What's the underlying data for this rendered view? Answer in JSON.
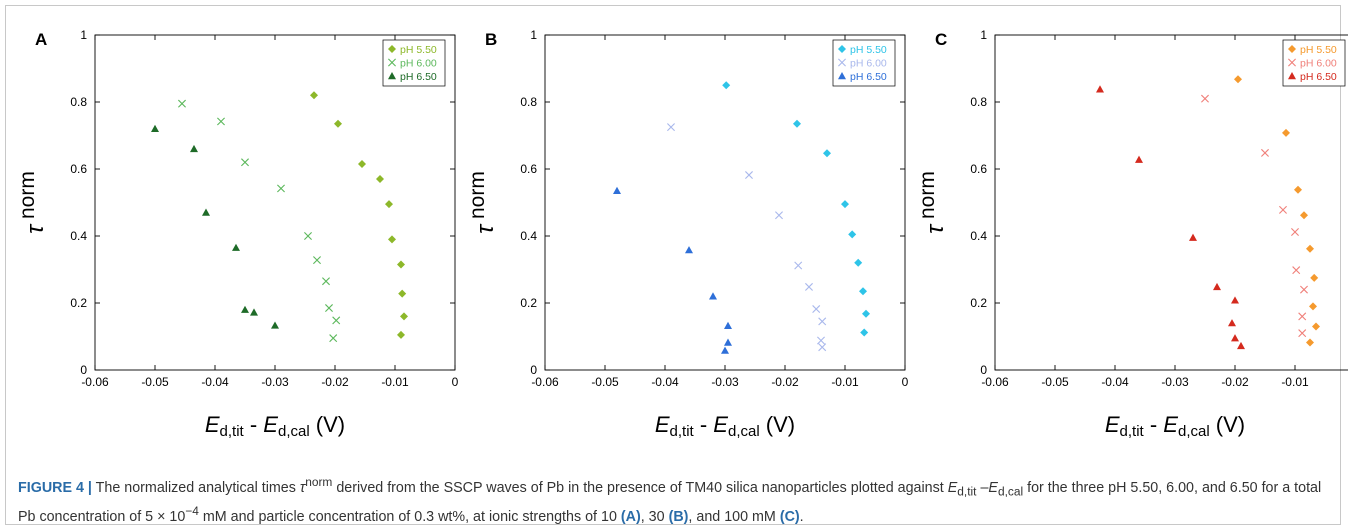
{
  "figure": {
    "caption": {
      "label": "FIGURE 4 |",
      "t1": " The normalized analytical times ",
      "tau": "τ",
      "norm": "norm",
      "t2": " derived from the SSCP waves of Pb in the presence of TM40 silica nanoparticles plotted against ",
      "e1": "E",
      "s1": "d,tit",
      "t3": " –",
      "e2": "E",
      "s2": "d,cal",
      "t4": " for the three pH 5.50, 6.00, and 6.50 for a total Pb concentration of 5 × 10",
      "exp": "−4",
      "t5": " mM and particle concentration of 0.3 wt%, at ionic strengths of 10 ",
      "pa": "(A)",
      "t6": ", 30 ",
      "pb": "(B)",
      "t7": ", and 100 mM ",
      "pc": "(C)",
      "t8": "."
    }
  },
  "chart_data": [
    {
      "type": "scatter",
      "panel_label": "A",
      "xlim": [
        -0.06,
        0
      ],
      "ylim": [
        0,
        1
      ],
      "xticks": [
        "-0.06",
        "-0.05",
        "-0.04",
        "-0.03",
        "-0.02",
        "-0.01",
        "0"
      ],
      "yticks": [
        "0",
        "0.2",
        "0.4",
        "0.6",
        "0.8",
        "1"
      ],
      "xlabel": {
        "a": "E",
        "a_sub": "d,tit",
        "mid": " - ",
        "b": "E",
        "b_sub": "d,cal",
        "unit": " (V)"
      },
      "ylabel": {
        "sym": "τ",
        "sup": "norm"
      },
      "legend_position": "top-right",
      "series": [
        {
          "name": "pH 5.50",
          "marker": "diamond",
          "color": "#8db82a",
          "x": [
            -0.0235,
            -0.0195,
            -0.0155,
            -0.0125,
            -0.011,
            -0.0105,
            -0.009,
            -0.0088,
            -0.0085,
            -0.009
          ],
          "y": [
            0.82,
            0.735,
            0.615,
            0.57,
            0.495,
            0.39,
            0.315,
            0.228,
            0.16,
            0.105
          ]
        },
        {
          "name": "pH 6.00",
          "marker": "cross",
          "color": "#5cb85c",
          "x": [
            -0.0455,
            -0.039,
            -0.035,
            -0.029,
            -0.0245,
            -0.023,
            -0.0215,
            -0.021,
            -0.0198,
            -0.0203
          ],
          "y": [
            0.795,
            0.742,
            0.62,
            0.542,
            0.4,
            0.328,
            0.265,
            0.185,
            0.148,
            0.095
          ]
        },
        {
          "name": "pH 6.50",
          "marker": "triangle",
          "color": "#1e6b28",
          "x": [
            -0.05,
            -0.0435,
            -0.0415,
            -0.0365,
            -0.035,
            -0.0335,
            -0.03
          ],
          "y": [
            0.72,
            0.66,
            0.47,
            0.365,
            0.18,
            0.172,
            0.133
          ]
        }
      ]
    },
    {
      "type": "scatter",
      "panel_label": "B",
      "xlim": [
        -0.06,
        0
      ],
      "ylim": [
        0,
        1
      ],
      "xticks": [
        "-0.06",
        "-0.05",
        "-0.04",
        "-0.03",
        "-0.02",
        "-0.01",
        "0"
      ],
      "yticks": [
        "0",
        "0.2",
        "0.4",
        "0.6",
        "0.8",
        "1"
      ],
      "xlabel": {
        "a": "E",
        "a_sub": "d,tit",
        "mid": " - ",
        "b": "E",
        "b_sub": "d,cal",
        "unit": " (V)"
      },
      "ylabel": {
        "sym": "τ",
        "sup": "norm"
      },
      "legend_position": "top-right",
      "series": [
        {
          "name": "pH 5.50",
          "marker": "diamond",
          "color": "#2ec4e8",
          "x": [
            -0.0298,
            -0.018,
            -0.013,
            -0.01,
            -0.0088,
            -0.0078,
            -0.007,
            -0.0065,
            -0.0068
          ],
          "y": [
            0.85,
            0.735,
            0.647,
            0.495,
            0.405,
            0.32,
            0.235,
            0.168,
            0.112
          ]
        },
        {
          "name": "pH 6.00",
          "marker": "cross",
          "color": "#a9b8ec",
          "x": [
            -0.039,
            -0.026,
            -0.021,
            -0.0178,
            -0.016,
            -0.0148,
            -0.0138,
            -0.014,
            -0.0138
          ],
          "y": [
            0.725,
            0.582,
            0.462,
            0.312,
            0.248,
            0.182,
            0.145,
            0.088,
            0.068
          ]
        },
        {
          "name": "pH 6.50",
          "marker": "triangle",
          "color": "#2e6fd8",
          "x": [
            -0.048,
            -0.036,
            -0.032,
            -0.0295,
            -0.0295,
            -0.03
          ],
          "y": [
            0.535,
            0.358,
            0.22,
            0.132,
            0.082,
            0.058
          ]
        }
      ]
    },
    {
      "type": "scatter",
      "panel_label": "C",
      "xlim": [
        -0.06,
        0
      ],
      "ylim": [
        0,
        1
      ],
      "xticks": [
        "-0.06",
        "-0.05",
        "-0.04",
        "-0.03",
        "-0.02",
        "-0.01",
        "0"
      ],
      "yticks": [
        "0",
        "0.2",
        "0.4",
        "0.6",
        "0.8",
        "1"
      ],
      "xlabel": {
        "a": "E",
        "a_sub": "d,tit",
        "mid": " - ",
        "b": "E",
        "b_sub": "d,cal",
        "unit": " (V)"
      },
      "ylabel": {
        "sym": "τ",
        "sup": "norm"
      },
      "legend_position": "top-right",
      "series": [
        {
          "name": "pH 5.50",
          "marker": "diamond",
          "color": "#f59a2e",
          "x": [
            -0.0195,
            -0.0115,
            -0.0095,
            -0.0085,
            -0.0075,
            -0.0068,
            -0.007,
            -0.0065,
            -0.0075
          ],
          "y": [
            0.868,
            0.708,
            0.538,
            0.462,
            0.362,
            0.275,
            0.19,
            0.13,
            0.082
          ]
        },
        {
          "name": "pH 6.00",
          "marker": "cross",
          "color": "#f0807a",
          "x": [
            -0.025,
            -0.015,
            -0.012,
            -0.01,
            -0.0098,
            -0.0085,
            -0.0088,
            -0.0088
          ],
          "y": [
            0.81,
            0.648,
            0.478,
            0.412,
            0.298,
            0.24,
            0.16,
            0.11
          ]
        },
        {
          "name": "pH 6.50",
          "marker": "triangle",
          "color": "#d42a1e",
          "x": [
            -0.0425,
            -0.036,
            -0.027,
            -0.023,
            -0.02,
            -0.0205,
            -0.02,
            -0.019
          ],
          "y": [
            0.838,
            0.628,
            0.395,
            0.248,
            0.208,
            0.14,
            0.095,
            0.072
          ]
        }
      ]
    }
  ]
}
